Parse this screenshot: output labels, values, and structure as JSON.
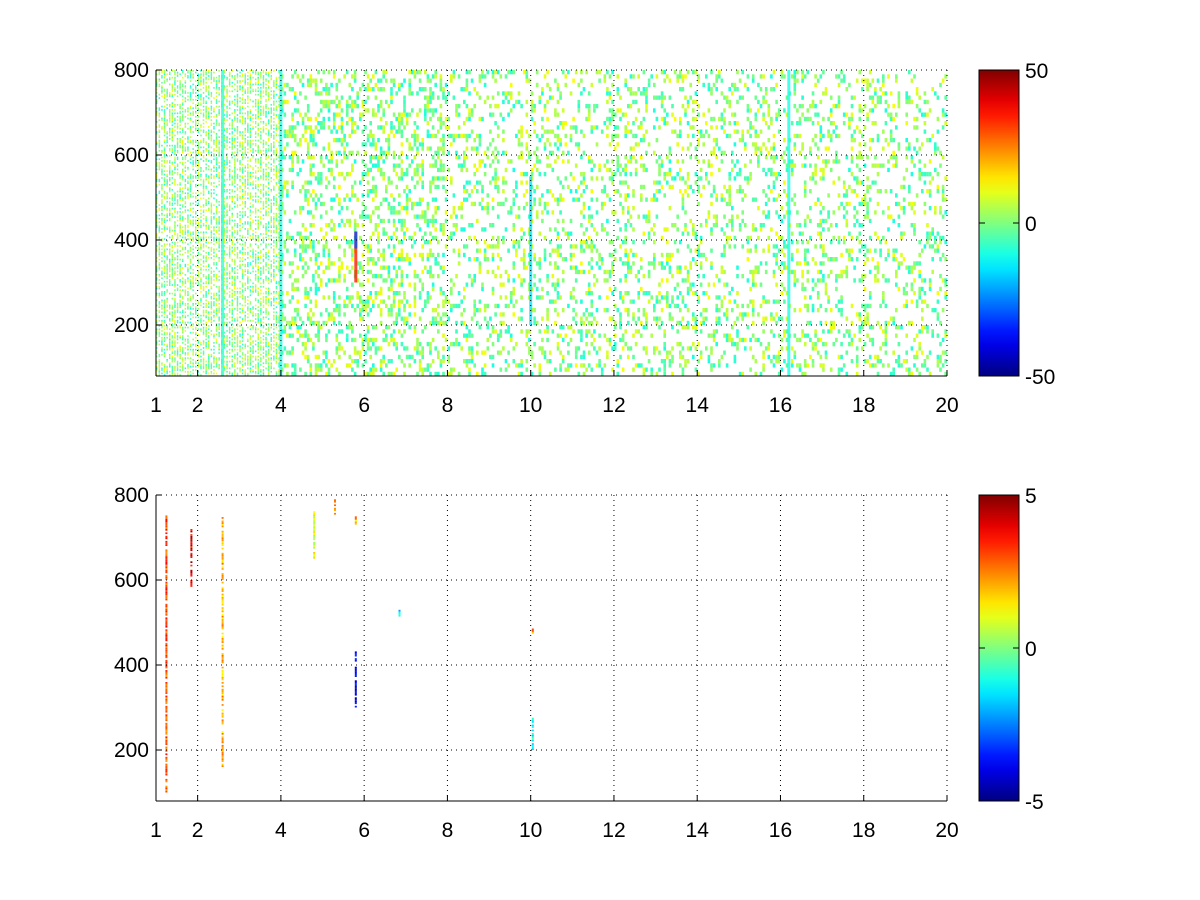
{
  "chart_data": [
    {
      "type": "heatmap",
      "title": "",
      "xlabel": "",
      "ylabel": "",
      "xlim": [
        1,
        20
      ],
      "ylim": [
        80,
        800
      ],
      "xticks": [
        1,
        2,
        4,
        6,
        8,
        10,
        12,
        14,
        16,
        18,
        20
      ],
      "yticks": [
        200,
        400,
        600,
        800
      ],
      "grid": true,
      "grid_style": "dotted",
      "background": "#ffffff",
      "colormap": "jet",
      "colorbar": {
        "range": [
          -50,
          50
        ],
        "ticks": [
          -50,
          0,
          50
        ],
        "placement": "right"
      },
      "description_of_values": "sparse cells, mostly near 0 (cyan-green-yellow), blank elsewhere",
      "highlights": [
        {
          "x": 2.6,
          "y_range": [
            80,
            800
          ],
          "value": -8
        },
        {
          "x": 4.0,
          "y_range": [
            80,
            800
          ],
          "value": -10
        },
        {
          "x": 5.8,
          "y_range": [
            300,
            420
          ],
          "value": 35
        },
        {
          "x": 5.8,
          "y_range": [
            380,
            420
          ],
          "value": -30
        },
        {
          "x": 10.0,
          "y_range": [
            200,
            550
          ],
          "value": -15
        },
        {
          "x": 16.2,
          "y_range": [
            80,
            800
          ],
          "value": -10
        }
      ]
    },
    {
      "type": "heatmap",
      "title": "",
      "xlabel": "",
      "ylabel": "",
      "xlim": [
        1,
        20
      ],
      "ylim": [
        80,
        800
      ],
      "xticks": [
        1,
        2,
        4,
        6,
        8,
        10,
        12,
        14,
        16,
        18,
        20
      ],
      "yticks": [
        200,
        400,
        600,
        800
      ],
      "grid": true,
      "grid_style": "dotted",
      "background": "#ffffff",
      "colormap": "jet",
      "colorbar": {
        "range": [
          -5,
          5
        ],
        "ticks": [
          -5,
          0,
          5
        ],
        "placement": "right"
      },
      "streaks": [
        {
          "x": 1.25,
          "y_range": [
            100,
            760
          ],
          "value": 3
        },
        {
          "x": 1.85,
          "y_range": [
            580,
            720
          ],
          "value": 4
        },
        {
          "x": 2.6,
          "y_range": [
            160,
            760
          ],
          "value": 2
        },
        {
          "x": 4.8,
          "y_range": [
            650,
            760
          ],
          "value": 1
        },
        {
          "x": 5.3,
          "y_range": [
            750,
            790
          ],
          "value": 2
        },
        {
          "x": 5.8,
          "y_range": [
            300,
            430
          ],
          "value": -4
        },
        {
          "x": 5.8,
          "y_range": [
            730,
            750
          ],
          "value": 2
        },
        {
          "x": 6.85,
          "y_range": [
            510,
            530
          ],
          "value": -1.5
        },
        {
          "x": 10.05,
          "y_range": [
            200,
            280
          ],
          "value": -1
        },
        {
          "x": 10.05,
          "y_range": [
            470,
            490
          ],
          "value": 2.5
        }
      ]
    }
  ]
}
